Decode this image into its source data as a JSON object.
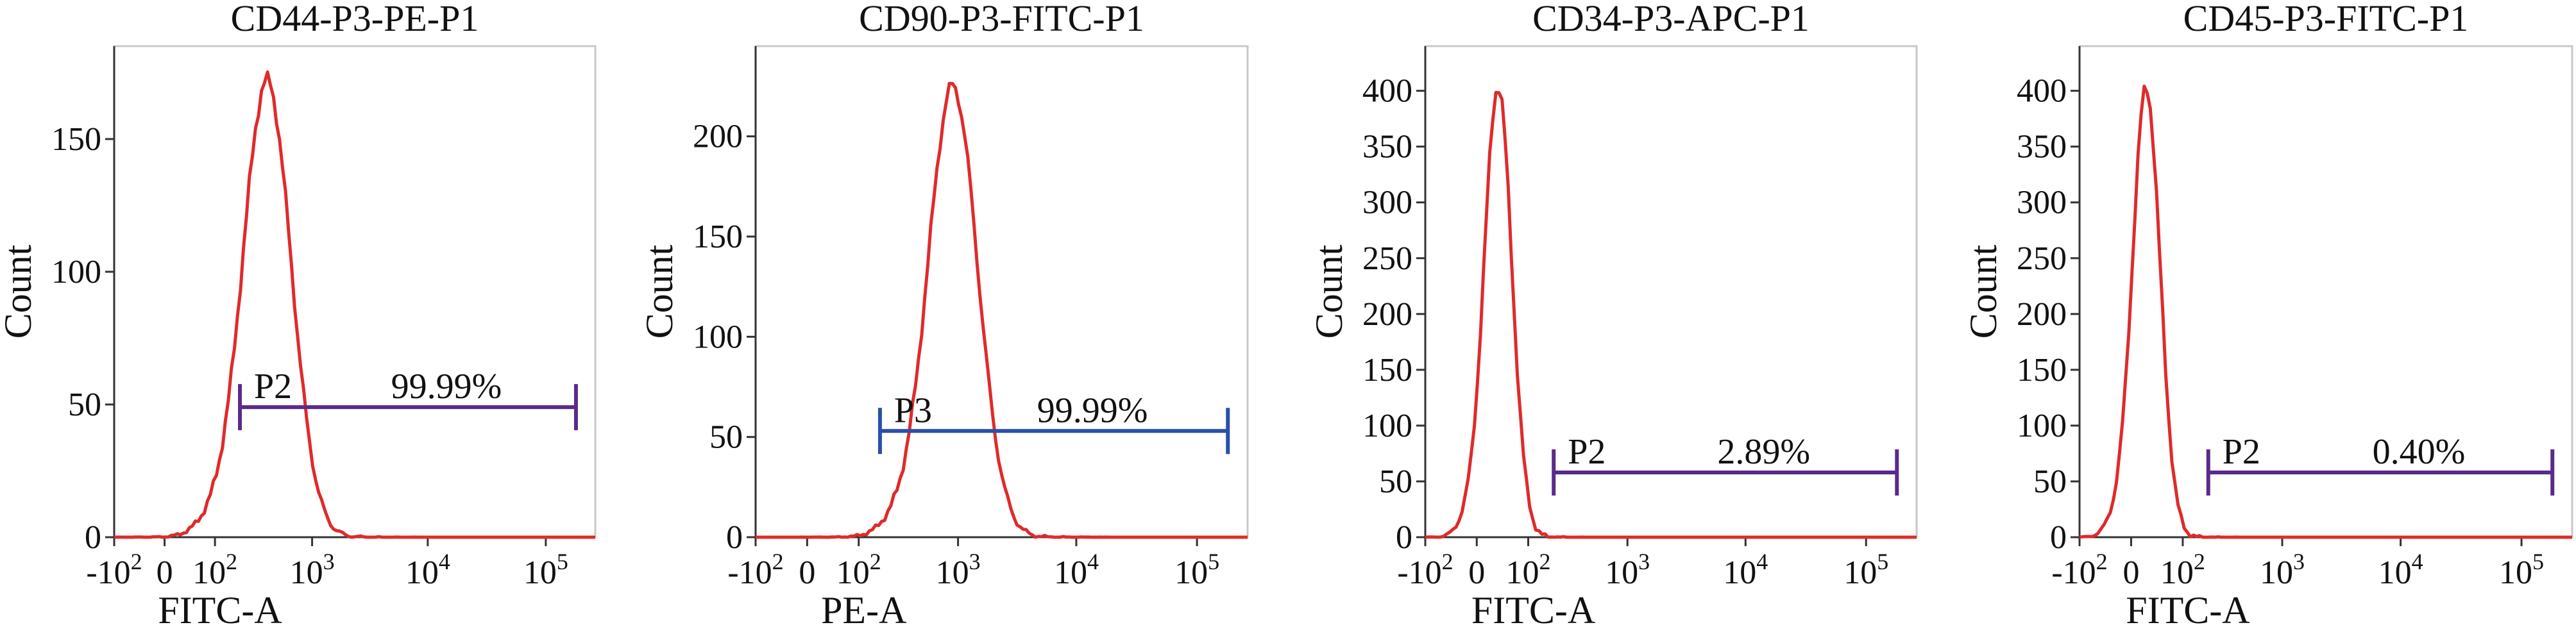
{
  "chart_data": [
    {
      "type": "histogram",
      "title": "CD44-P3-PE-P1",
      "xlabel": "FITC-A",
      "ylabel": "Count",
      "xscale": "biexponential",
      "xticks": [
        "-10²",
        "0",
        "10²",
        "10³",
        "10⁴",
        "10⁵"
      ],
      "yticks": [
        0,
        50,
        100,
        150
      ],
      "ylim": [
        0,
        185
      ],
      "peak": {
        "x": 380,
        "count": 172
      },
      "gate": {
        "name": "P2",
        "percent": "99.99%",
        "x_start": 200,
        "x_end": 180000,
        "y": 49,
        "color": "#5a2a8a"
      },
      "line_color": "#e02a2a"
    },
    {
      "type": "histogram",
      "title": "CD90-P3-FITC-P1",
      "xlabel": "PE-A",
      "ylabel": "Count",
      "xscale": "biexponential",
      "xticks": [
        "-10²",
        "0",
        "10²",
        "10³",
        "10⁴",
        "10⁵"
      ],
      "yticks": [
        0,
        50,
        100,
        150,
        200
      ],
      "ylim": [
        0,
        245
      ],
      "peak": {
        "x": 900,
        "count": 225
      },
      "gate": {
        "name": "P3",
        "percent": "99.99%",
        "x_start": 180,
        "x_end": 180000,
        "y": 53,
        "color": "#2a4fa8"
      },
      "line_color": "#e02a2a"
    },
    {
      "type": "histogram",
      "title": "CD34-P3-APC-P1",
      "xlabel": "FITC-A",
      "ylabel": "Count",
      "xscale": "biexponential",
      "xticks": [
        "-10²",
        "0",
        "10²",
        "10³",
        "10⁴",
        "10⁵"
      ],
      "yticks": [
        0,
        50,
        100,
        150,
        200,
        250,
        300,
        350,
        400
      ],
      "ylim": [
        0,
        440
      ],
      "peak": {
        "x": 30,
        "count": 405
      },
      "gate": {
        "name": "P2",
        "percent": "2.89%",
        "x_start": 200,
        "x_end": 180000,
        "y": 58,
        "color": "#5a2a8a"
      },
      "line_color": "#e02a2a"
    },
    {
      "type": "histogram",
      "title": "CD45-P3-FITC-P1",
      "xlabel": "FITC-A",
      "ylabel": "Count",
      "xscale": "biexponential",
      "xticks": [
        "-10²",
        "0",
        "10²",
        "10³",
        "10⁴",
        "10⁵"
      ],
      "yticks": [
        0,
        50,
        100,
        150,
        200,
        250,
        300,
        350,
        400
      ],
      "ylim": [
        0,
        440
      ],
      "peak": {
        "x": 20,
        "count": 403
      },
      "gate": {
        "name": "P2",
        "percent": "0.40%",
        "x_start": 200,
        "x_end": 180000,
        "y": 58,
        "color": "#5a2a8a"
      },
      "line_color": "#e02a2a"
    }
  ]
}
